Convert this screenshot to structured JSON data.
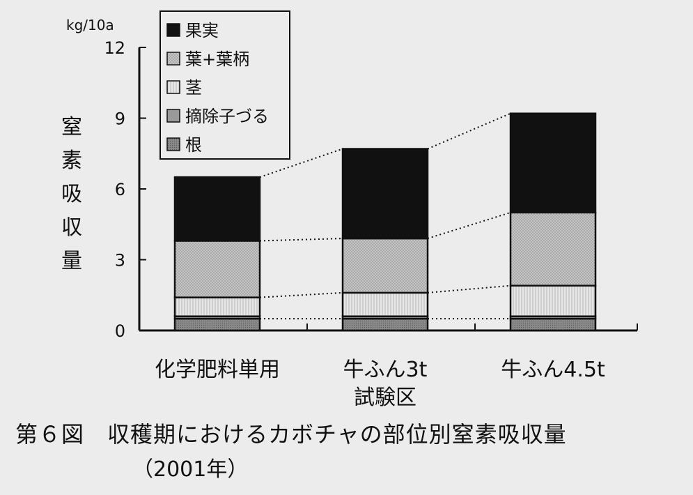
{
  "chart_data": {
    "type": "bar",
    "stacked": true,
    "unit": "kg/10a",
    "ylabel": "窒素吸収量",
    "ylim": [
      0,
      12
    ],
    "yticks": [
      0,
      3,
      6,
      9,
      12
    ],
    "categories": [
      [
        "化学肥料単用"
      ],
      [
        "牛ふん3t",
        "試験区"
      ],
      [
        "牛ふん4.5t"
      ]
    ],
    "series": [
      {
        "name": "根",
        "values": [
          0.5,
          0.5,
          0.5
        ],
        "color": "#8a8a8a"
      },
      {
        "name": "摘除子づる",
        "values": [
          0.1,
          0.1,
          0.1
        ],
        "color": "#9a9a9a"
      },
      {
        "name": "茎",
        "values": [
          0.8,
          1.0,
          1.3
        ],
        "color": "#dcdcdc"
      },
      {
        "name": "葉+葉柄",
        "values": [
          2.4,
          2.3,
          3.1
        ],
        "color": "#b9b9b9"
      },
      {
        "name": "果実",
        "values": [
          2.7,
          3.8,
          4.2
        ],
        "color": "#111111"
      }
    ],
    "legend_order": [
      "果実",
      "葉+葉柄",
      "茎",
      "摘除子づる",
      "根"
    ],
    "legend_position": "top-left",
    "connector_lines": "dotted"
  },
  "caption": {
    "title": "第６図　収穫期におけるカボチャの部位別窒素吸収量",
    "subtitle": "（2001年）"
  }
}
